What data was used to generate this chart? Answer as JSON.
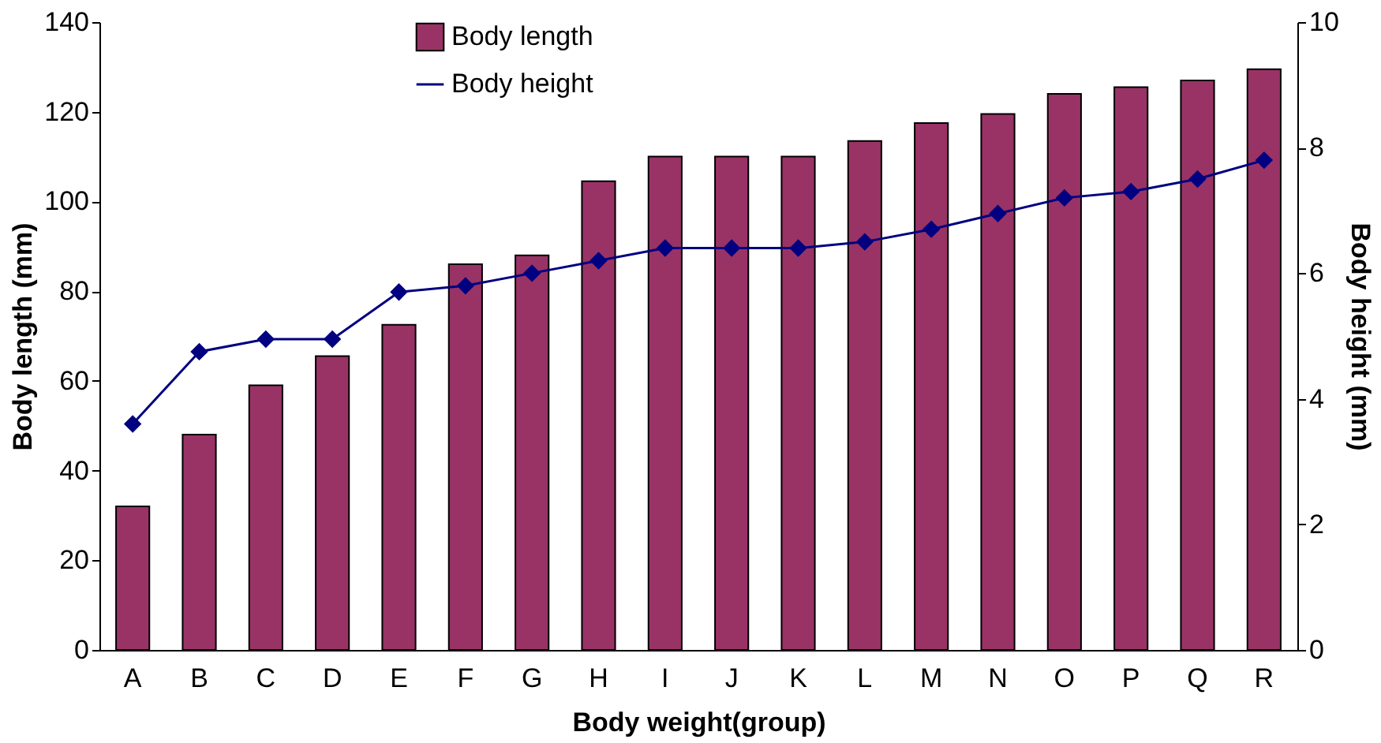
{
  "chart_data": {
    "type": "bar",
    "xlabel": "Body weight(group)",
    "ylabel": "Body length (mm)",
    "y2label": "Body height (mm)",
    "categories": [
      "A",
      "B",
      "C",
      "D",
      "E",
      "F",
      "G",
      "H",
      "I",
      "J",
      "K",
      "L",
      "M",
      "N",
      "O",
      "P",
      "Q",
      "R"
    ],
    "series": [
      {
        "name": "Body length",
        "color": "#993366",
        "values": [
          32,
          48,
          59,
          65.5,
          72.5,
          86,
          88,
          104.5,
          110,
          110,
          110,
          113.5,
          117.5,
          119.5,
          124,
          125.5,
          127,
          129.5
        ]
      },
      {
        "name": "Body height",
        "type": "line",
        "axis": "y2",
        "color": "#000080",
        "marker": "diamond",
        "values": [
          3.6,
          4.75,
          4.95,
          4.95,
          5.7,
          5.8,
          6.0,
          6.2,
          6.4,
          6.4,
          6.4,
          6.5,
          6.7,
          6.95,
          7.2,
          7.3,
          7.5,
          7.8
        ]
      }
    ],
    "ylim": [
      0,
      140
    ],
    "yticks": [
      0,
      20,
      40,
      60,
      80,
      100,
      120,
      140
    ],
    "y2lim": [
      0,
      10
    ],
    "y2ticks": [
      0,
      2,
      4,
      6,
      8,
      10
    ],
    "grid": false,
    "legend": "top"
  }
}
